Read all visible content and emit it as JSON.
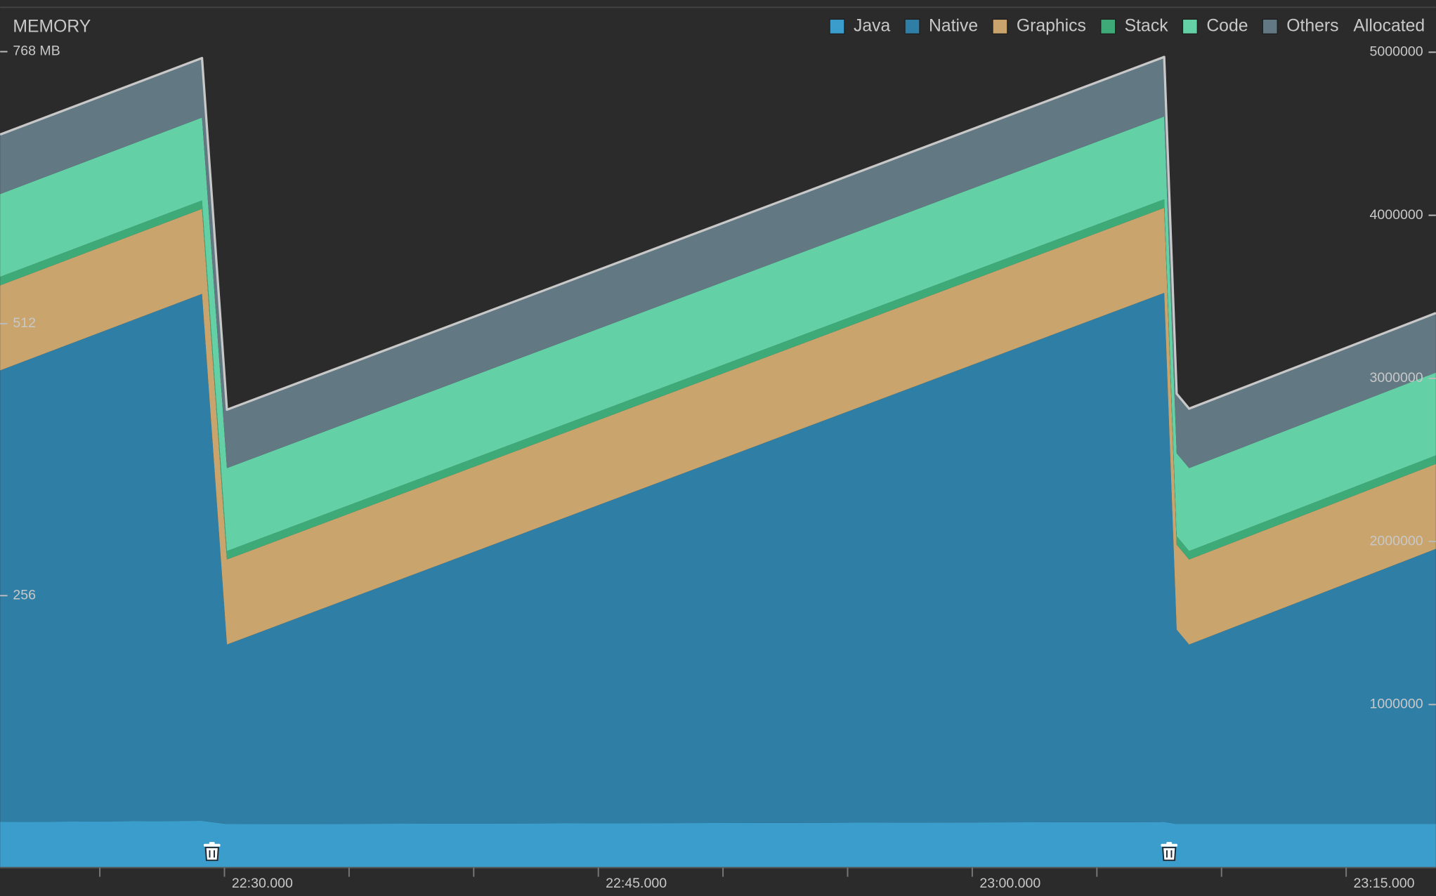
{
  "chart_data": {
    "type": "stacked-area",
    "title": "MEMORY",
    "x": [
      1341,
      1349.1,
      1350.1,
      1387.7,
      1388.2,
      1388.7,
      1398.6
    ],
    "xlim": [
      1341,
      1398.6
    ],
    "xticks": [
      {
        "value": 1350,
        "label": "22:30.000"
      },
      {
        "value": 1365,
        "label": "22:45.000"
      },
      {
        "value": 1380,
        "label": "23:00.000"
      },
      {
        "value": 1395,
        "label": "23:15.000"
      }
    ],
    "xminorticks": [
      1345,
      1355,
      1360,
      1370,
      1375,
      1385,
      1390
    ],
    "ylim": [
      0,
      808
    ],
    "yticks": [
      {
        "value": 256,
        "label": "256"
      },
      {
        "value": 512,
        "label": "512"
      },
      {
        "value": 768,
        "label": "768 MB"
      }
    ],
    "y2label": "Allocated",
    "y2lim": [
      0,
      5264000
    ],
    "y2ticks": [
      1000000,
      2000000,
      3000000,
      4000000,
      5000000
    ],
    "series": [
      {
        "name": "Java",
        "color": "#3b9dcb",
        "values": [
          43,
          44,
          41,
          43,
          41,
          41,
          41
        ]
      },
      {
        "name": "Native",
        "color": "#2f7ea6",
        "values": [
          425,
          496,
          169,
          498,
          183,
          169,
          259
        ]
      },
      {
        "name": "Graphics",
        "color": "#c9a46c",
        "values": [
          80,
          80,
          80,
          80,
          80,
          80,
          80
        ]
      },
      {
        "name": "Stack",
        "color": "#3daa78",
        "values": [
          8,
          8,
          8,
          8,
          8,
          8,
          8
        ]
      },
      {
        "name": "Code",
        "color": "#64d0a5",
        "values": [
          78,
          78,
          78,
          78,
          78,
          78,
          78
        ]
      },
      {
        "name": "Others",
        "color": "#627883",
        "values": [
          56,
          56,
          55,
          56,
          56,
          56,
          56
        ]
      }
    ],
    "gc_events": [
      1349.5,
      1387.9
    ]
  }
}
